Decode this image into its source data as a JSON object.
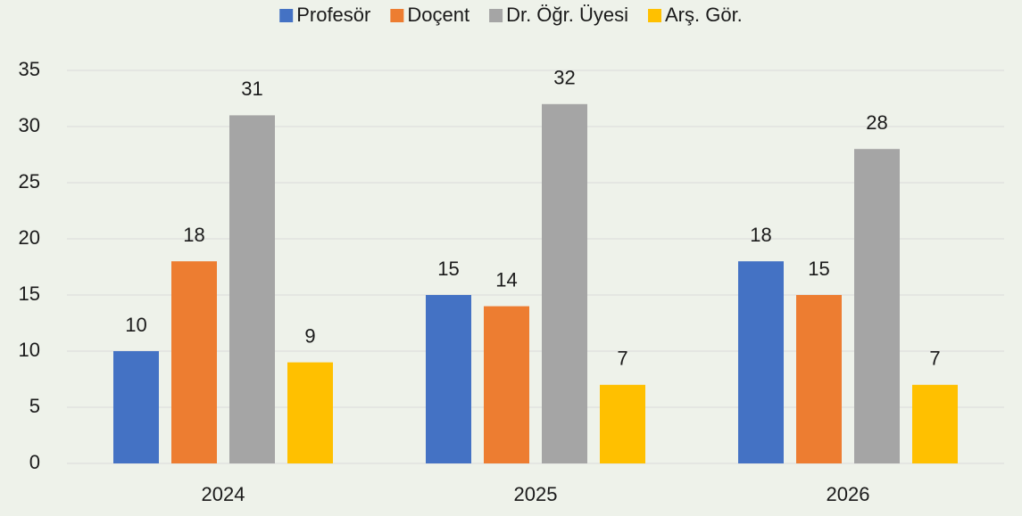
{
  "chart_data": {
    "type": "bar",
    "categories": [
      "2024",
      "2025",
      "2026"
    ],
    "series": [
      {
        "name": "Profesör",
        "color": "#4472c4",
        "values": [
          10,
          15,
          18
        ]
      },
      {
        "name": "Doçent",
        "color": "#ed7d31",
        "values": [
          18,
          14,
          15
        ]
      },
      {
        "name": "Dr. Öğr. Üyesi",
        "color": "#a5a5a5",
        "values": [
          31,
          32,
          28
        ]
      },
      {
        "name": "Arş. Gör.",
        "color": "#ffc000",
        "values": [
          9,
          7,
          7
        ]
      }
    ],
    "ylim": [
      0,
      35
    ],
    "yticks": [
      0,
      5,
      10,
      15,
      20,
      25,
      30,
      35
    ],
    "grid": true,
    "legend": "top"
  }
}
